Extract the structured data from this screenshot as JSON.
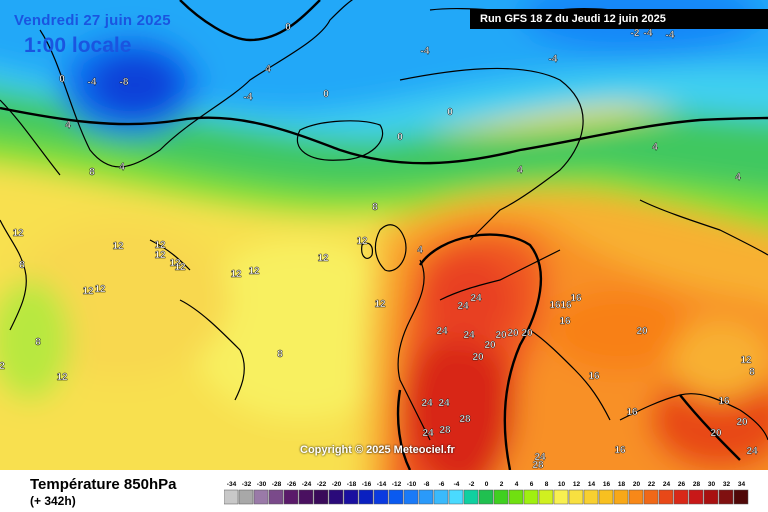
{
  "header": {
    "run": "Run GFS 18 Z du Jeudi 12 juin 2025",
    "valid_date": "Vendredi 27 juin 2025",
    "valid_time": "1:00 locale"
  },
  "footer": {
    "copyright": "Copyright © 2025 Meteociel.fr",
    "title": "Température 850hPa",
    "lead": "(+ 342h)"
  },
  "scale": {
    "values": [
      -34,
      -32,
      -30,
      -28,
      -26,
      -24,
      -22,
      -20,
      -18,
      -16,
      -14,
      -12,
      -10,
      -8,
      -6,
      -4,
      -2,
      0,
      2,
      4,
      6,
      8,
      10,
      12,
      14,
      16,
      18,
      20,
      22,
      24,
      26,
      28,
      30,
      32,
      34
    ],
    "colors": [
      "#c8c8c8",
      "#a8a8a8",
      "#9a7aa8",
      "#7a4a8a",
      "#5a1a6a",
      "#4a1060",
      "#3a0a5a",
      "#2a0a7a",
      "#1a10a0",
      "#0a20c0",
      "#0a3ae0",
      "#0a5af0",
      "#1a7af8",
      "#2a9afa",
      "#3abafc",
      "#4adafe",
      "#10d0a0",
      "#20c050",
      "#40d020",
      "#70e010",
      "#a0f010",
      "#d0f020",
      "#f8f050",
      "#f8e040",
      "#f8d030",
      "#f8c020",
      "#f8a818",
      "#f88818",
      "#f06818",
      "#e84818",
      "#d82818",
      "#c81818",
      "#a81010",
      "#801010",
      "#500808"
    ]
  },
  "labels": [
    {
      "t": "0"
    },
    {
      "t": "-4"
    },
    {
      "t": "-8"
    },
    {
      "t": "0"
    },
    {
      "t": "4"
    },
    {
      "t": "-4"
    },
    {
      "t": "0"
    },
    {
      "t": "4"
    },
    {
      "t": "8"
    },
    {
      "t": "4"
    },
    {
      "t": "0"
    },
    {
      "t": "0"
    },
    {
      "t": "-4"
    },
    {
      "t": "-4"
    },
    {
      "t": "-4"
    },
    {
      "t": "-2"
    },
    {
      "t": "-4"
    },
    {
      "t": "4"
    },
    {
      "t": "4"
    },
    {
      "t": "4"
    },
    {
      "t": "8"
    },
    {
      "t": "12"
    },
    {
      "t": "12"
    },
    {
      "t": "12"
    },
    {
      "t": "12"
    },
    {
      "t": "12"
    },
    {
      "t": "12"
    },
    {
      "t": "12"
    },
    {
      "t": "12"
    },
    {
      "t": "12"
    },
    {
      "t": "12"
    },
    {
      "t": "8"
    },
    {
      "t": "8"
    },
    {
      "t": "12"
    },
    {
      "t": "2"
    },
    {
      "t": "12"
    },
    {
      "t": "12"
    },
    {
      "t": "16"
    },
    {
      "t": "16"
    },
    {
      "t": "24"
    },
    {
      "t": "24"
    },
    {
      "t": "24"
    },
    {
      "t": "24"
    },
    {
      "t": "20"
    },
    {
      "t": "20"
    },
    {
      "t": "20"
    },
    {
      "t": "20"
    },
    {
      "t": "16"
    },
    {
      "t": "16"
    },
    {
      "t": "20"
    },
    {
      "t": "20"
    },
    {
      "t": "16"
    },
    {
      "t": "16"
    },
    {
      "t": "24"
    },
    {
      "t": "24"
    },
    {
      "t": "28"
    },
    {
      "t": "28"
    },
    {
      "t": "24"
    },
    {
      "t": "24"
    },
    {
      "t": "28"
    },
    {
      "t": "16"
    },
    {
      "t": "12"
    },
    {
      "t": "8"
    },
    {
      "t": "16"
    },
    {
      "t": "20"
    },
    {
      "t": "20"
    },
    {
      "t": "24"
    },
    {
      "t": "12"
    },
    {
      "t": "4"
    },
    {
      "t": "8"
    }
  ]
}
